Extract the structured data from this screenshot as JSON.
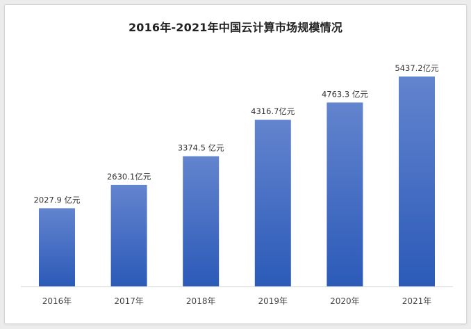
{
  "chart_data": {
    "type": "bar",
    "title": "2016年-2021年中国云计算市场规模情况",
    "categories": [
      "2016年",
      "2017年",
      "2018年",
      "2019年",
      "2020年",
      "2021年"
    ],
    "values": [
      2027.9,
      2630.1,
      3374.5,
      4316.7,
      4763.3,
      5437.2
    ],
    "data_labels": [
      "2027.9 亿元",
      "2630.1亿元",
      "3374.5 亿元",
      "4316.7亿元",
      "4763.3 亿元",
      "5437.2亿元"
    ],
    "xlabel": "",
    "ylabel": "",
    "ylim": [
      0,
      6000
    ],
    "grid": false,
    "legend": "none",
    "colors": {
      "bar_top": "#6384ce",
      "bar_bottom": "#2b5ab8",
      "axis": "#d0d0d0"
    }
  }
}
